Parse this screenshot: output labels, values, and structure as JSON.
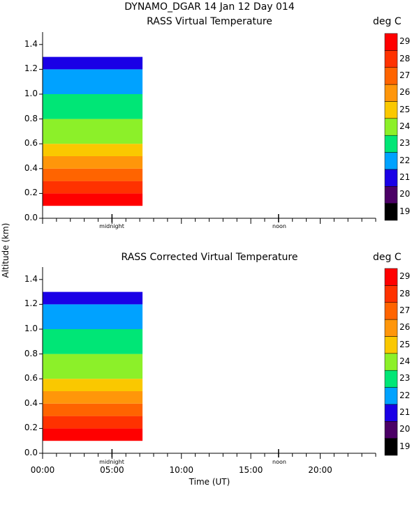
{
  "header": {
    "title": "DYNAMO_DGAR  14 Jan 12 Day 014"
  },
  "y_axis_label": "Altitude (km)",
  "x_axis_label": "Time (UT)",
  "colorbar": {
    "unit": "deg C",
    "levels": [
      19,
      20,
      21,
      22,
      23,
      24,
      25,
      26,
      27,
      28,
      29
    ],
    "colors": [
      "#000000",
      "#4b0066",
      "#1a00e6",
      "#00a2ff",
      "#00e676",
      "#8cf029",
      "#fac800",
      "#ff960a",
      "#ff6400",
      "#ff3200",
      "#ff0000"
    ]
  },
  "chart_data": [
    {
      "type": "heatmap",
      "title": "RASS Virtual Temperature",
      "ylabel": "Altitude (km)",
      "ylim": [
        0,
        1.5
      ],
      "xlim": [
        0,
        24
      ],
      "y_ticks": [
        0.0,
        0.2,
        0.4,
        0.6,
        0.8,
        1.0,
        1.2,
        1.4
      ],
      "x_markers": [
        {
          "label": "midnight",
          "x": 5
        },
        {
          "label": "noon",
          "x": 17
        }
      ],
      "data_extent_hours": [
        0,
        7.2
      ],
      "profiles": [
        {
          "altitude_range_km": [
            0.1,
            0.2
          ],
          "value": 29
        },
        {
          "altitude_range_km": [
            0.2,
            0.3
          ],
          "value": 28
        },
        {
          "altitude_range_km": [
            0.3,
            0.4
          ],
          "value": 27
        },
        {
          "altitude_range_km": [
            0.4,
            0.5
          ],
          "value": 26
        },
        {
          "altitude_range_km": [
            0.5,
            0.6
          ],
          "value": 25
        },
        {
          "altitude_range_km": [
            0.6,
            0.8
          ],
          "value": 24
        },
        {
          "altitude_range_km": [
            0.8,
            1.0
          ],
          "value": 23
        },
        {
          "altitude_range_km": [
            1.0,
            1.2
          ],
          "value": 22
        },
        {
          "altitude_range_km": [
            1.2,
            1.3
          ],
          "value": 21
        }
      ]
    },
    {
      "type": "heatmap",
      "title": "RASS Corrected Virtual Temperature",
      "ylabel": "Altitude (km)",
      "xlabel": "Time (UT)",
      "ylim": [
        0,
        1.5
      ],
      "xlim": [
        0,
        24
      ],
      "y_ticks": [
        0.0,
        0.2,
        0.4,
        0.6,
        0.8,
        1.0,
        1.2,
        1.4
      ],
      "x_ticks": [
        "00:00",
        "05:00",
        "10:00",
        "15:00",
        "20:00"
      ],
      "x_markers": [
        {
          "label": "midnight",
          "x": 5
        },
        {
          "label": "noon",
          "x": 17
        }
      ],
      "data_extent_hours": [
        0,
        7.2
      ],
      "profiles": [
        {
          "altitude_range_km": [
            0.1,
            0.2
          ],
          "value": 29
        },
        {
          "altitude_range_km": [
            0.2,
            0.3
          ],
          "value": 28
        },
        {
          "altitude_range_km": [
            0.3,
            0.4
          ],
          "value": 27
        },
        {
          "altitude_range_km": [
            0.4,
            0.5
          ],
          "value": 26
        },
        {
          "altitude_range_km": [
            0.5,
            0.6
          ],
          "value": 25
        },
        {
          "altitude_range_km": [
            0.6,
            0.8
          ],
          "value": 24
        },
        {
          "altitude_range_km": [
            0.8,
            1.0
          ],
          "value": 23
        },
        {
          "altitude_range_km": [
            1.0,
            1.2
          ],
          "value": 22
        },
        {
          "altitude_range_km": [
            1.2,
            1.3
          ],
          "value": 21
        }
      ]
    }
  ]
}
